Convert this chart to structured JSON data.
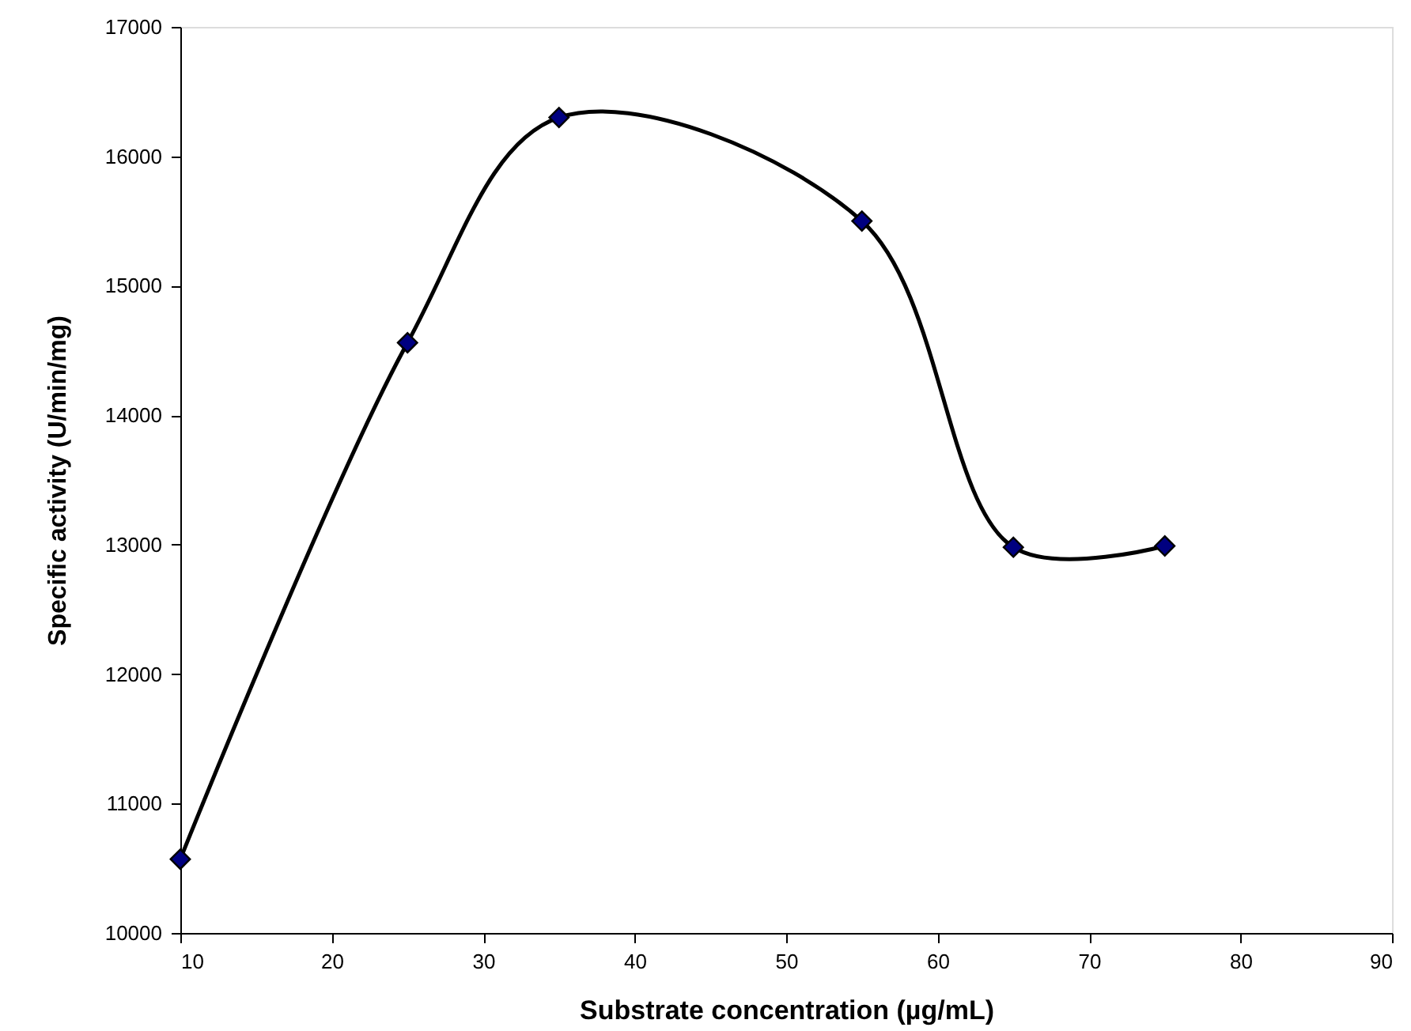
{
  "chart_data": {
    "type": "line",
    "xlabel": "Substrate concentration (µg/mL)",
    "ylabel": "Specific activity (U/min/mg)",
    "x": [
      10,
      25,
      35,
      55,
      65,
      75
    ],
    "series": [
      {
        "color": "#000080",
        "values": [
          10570,
          14560,
          16300,
          15500,
          12980,
          12990
        ]
      }
    ],
    "xlim": [
      10,
      90
    ],
    "xticks": [
      10,
      20,
      30,
      40,
      50,
      60,
      70,
      80,
      90
    ],
    "ylim": [
      10000,
      17000
    ],
    "yticks": [
      10000,
      11000,
      12000,
      13000,
      14000,
      15000,
      16000,
      17000
    ],
    "grid": false,
    "marker": "diamond",
    "line_style": "solid"
  }
}
